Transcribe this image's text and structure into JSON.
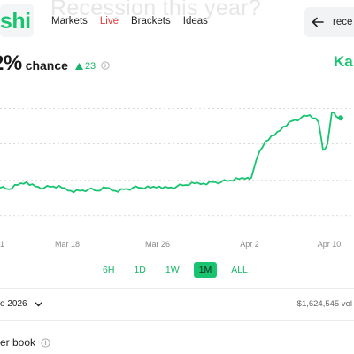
{
  "header": {
    "ghost_title": "Recession this year?",
    "logo_text": "shi",
    "nav": [
      {
        "label": "Markets"
      },
      {
        "label": "Live"
      },
      {
        "label": "Brackets"
      },
      {
        "label": "Ideas"
      }
    ],
    "search_text": "rece"
  },
  "market": {
    "percent": "2%",
    "chance_label": "chance",
    "delta": "23",
    "brand_right": "Ka"
  },
  "chart_data": {
    "type": "line",
    "x_tick_labels": [
      "1",
      "Mar 18",
      "Mar 26",
      "Apr 2",
      "Apr 10"
    ],
    "x": [
      0,
      10,
      20,
      30,
      40,
      50,
      60,
      70,
      80,
      90,
      100,
      110,
      120,
      130,
      140,
      150,
      160,
      170,
      180,
      190,
      200,
      210,
      220,
      230,
      240,
      250,
      260,
      270,
      280,
      284,
      290,
      300,
      310,
      320,
      330,
      340,
      350,
      360,
      365,
      370,
      375,
      380,
      385
    ],
    "values": [
      26,
      25,
      28,
      30,
      27,
      26,
      27,
      26,
      24,
      24,
      25,
      24,
      26,
      24,
      25,
      26,
      26,
      26,
      27,
      26,
      27,
      28,
      29,
      29,
      30,
      30,
      31,
      32,
      33,
      33,
      46,
      58,
      62,
      68,
      72,
      74,
      76,
      71,
      52,
      56,
      78,
      75,
      74
    ],
    "ylim": [
      0,
      90
    ],
    "grid": true,
    "line_color": "#18c470"
  },
  "ranges": [
    "6H",
    "1D",
    "1W",
    "1M",
    "ALL"
  ],
  "active_range": "1M",
  "footer": {
    "date_label": "o 2026",
    "volume": "$1,624,545 vol"
  },
  "orderbook_label": "er book",
  "colors": {
    "accent": "#18c470",
    "live": "#e53935"
  }
}
